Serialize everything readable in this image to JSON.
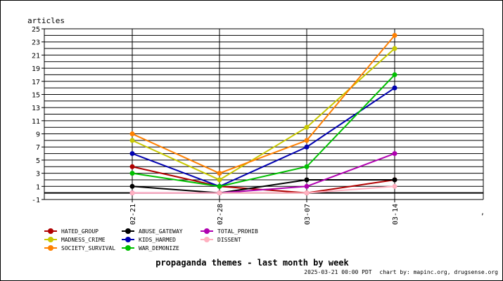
{
  "chart_data": {
    "type": "line",
    "title": "propaganda themes - last month by week",
    "ylabel": "articles",
    "xlabel": "",
    "categories": [
      "02-21",
      "02-28",
      "03-07",
      "03-14"
    ],
    "ylim": [
      -1,
      25
    ],
    "yticks": [
      -1,
      1,
      3,
      5,
      7,
      9,
      11,
      13,
      15,
      17,
      19,
      21,
      23,
      25
    ],
    "grid": true,
    "legend_position": "bottom-left",
    "series": [
      {
        "name": "HATED_GROUP",
        "color": "#b00000",
        "values": [
          4,
          1,
          0,
          2
        ]
      },
      {
        "name": "MADNESS_CRIME",
        "color": "#c8c800",
        "values": [
          8,
          2,
          10,
          22
        ]
      },
      {
        "name": "SOCIETY_SURVIVAL",
        "color": "#ff8000",
        "values": [
          9,
          3,
          8,
          24
        ]
      },
      {
        "name": "ABUSE_GATEWAY",
        "color": "#000000",
        "values": [
          1,
          0,
          2,
          2
        ]
      },
      {
        "name": "KIDS_HARMED",
        "color": "#0000b0",
        "values": [
          6,
          1,
          7,
          16
        ]
      },
      {
        "name": "WAR_DEMONIZE",
        "color": "#00c000",
        "values": [
          3,
          1,
          4,
          18
        ]
      },
      {
        "name": "TOTAL_PROHIB",
        "color": "#b000b0",
        "values": [
          0,
          0,
          1,
          6
        ]
      },
      {
        "name": "DISSENT",
        "color": "#ffb0c0",
        "values": [
          0,
          0,
          0,
          1
        ]
      }
    ],
    "zero_line": 0
  },
  "annotations": {
    "comma_mark": ",",
    "timestamp": "2025-03-21 00:00 PDT",
    "credit": "chart by: mapinc.org, drugsense.org"
  }
}
